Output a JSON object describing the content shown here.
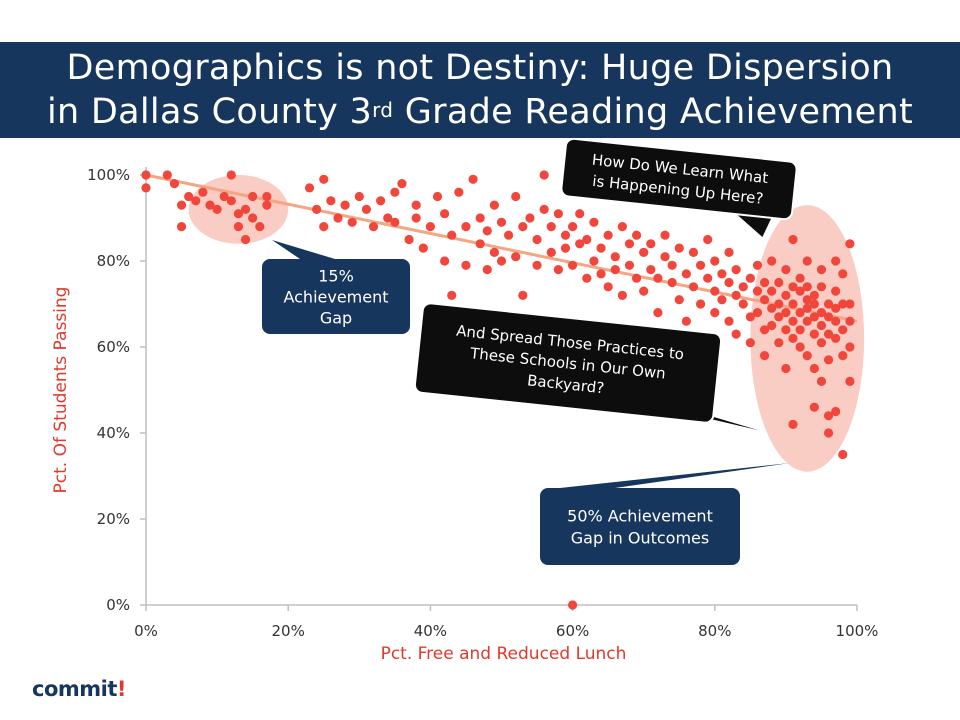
{
  "header": {
    "title_line1": "Demographics is not Destiny:  Huge Dispersion",
    "title_line2_pre": "in Dallas County 3",
    "title_line2_sup": "rd",
    "title_line2_post": " Grade Reading Achievement"
  },
  "logo": {
    "text": "commit",
    "accent": "!"
  },
  "colors": {
    "header_bg": "#17365d",
    "point": "#f0463c",
    "trend": "#f4a582",
    "highlight": "#f8c4b8",
    "callout_navy": "#17365d",
    "callout_black": "#0d0d0d",
    "axis_label": "#e2382b"
  },
  "chart_data": {
    "type": "scatter",
    "xlabel": "Pct. Free and Reduced Lunch",
    "ylabel": "Pct. Of Students Passing",
    "xlim": [
      0,
      100
    ],
    "ylim": [
      0,
      100
    ],
    "x_ticks": [
      "0%",
      "20%",
      "40%",
      "60%",
      "80%",
      "100%"
    ],
    "y_ticks": [
      "0%",
      "20%",
      "40%",
      "60%",
      "80%",
      "100%"
    ],
    "grid": false,
    "trendline": {
      "x": [
        0,
        100
      ],
      "y": [
        100,
        66
      ]
    },
    "highlights": [
      {
        "cx": 13,
        "cy": 92,
        "rx": 7,
        "ry": 8
      },
      {
        "cx": 93,
        "cy": 62,
        "rx": 8,
        "ry": 31
      }
    ],
    "callouts": [
      {
        "text_lines": [
          "15%",
          "Achievement",
          "Gap"
        ],
        "style": "navy"
      },
      {
        "text_lines": [
          "50% Achievement",
          "Gap in Outcomes"
        ],
        "style": "navy"
      },
      {
        "text_lines": [
          "How Do We Learn What",
          "is Happening Up Here?"
        ],
        "style": "black"
      },
      {
        "text_lines": [
          "And Spread Those Practices to",
          "These Schools in Our Own",
          "Backyard?"
        ],
        "style": "black"
      }
    ],
    "points": [
      [
        0,
        100
      ],
      [
        0,
        97
      ],
      [
        3,
        100
      ],
      [
        4,
        98
      ],
      [
        5,
        93
      ],
      [
        5,
        88
      ],
      [
        6,
        95
      ],
      [
        7,
        94
      ],
      [
        8,
        96
      ],
      [
        9,
        93
      ],
      [
        10,
        92
      ],
      [
        11,
        95
      ],
      [
        12,
        100
      ],
      [
        12,
        94
      ],
      [
        13,
        91
      ],
      [
        13,
        88
      ],
      [
        14,
        92
      ],
      [
        14,
        85
      ],
      [
        15,
        95
      ],
      [
        15,
        90
      ],
      [
        16,
        88
      ],
      [
        17,
        93
      ],
      [
        17,
        95
      ],
      [
        23,
        97
      ],
      [
        24,
        92
      ],
      [
        25,
        99
      ],
      [
        25,
        88
      ],
      [
        26,
        94
      ],
      [
        27,
        90
      ],
      [
        28,
        93
      ],
      [
        29,
        89
      ],
      [
        30,
        95
      ],
      [
        31,
        92
      ],
      [
        32,
        88
      ],
      [
        33,
        94
      ],
      [
        34,
        90
      ],
      [
        35,
        89
      ],
      [
        35,
        96
      ],
      [
        36,
        98
      ],
      [
        37,
        85
      ],
      [
        38,
        90
      ],
      [
        38,
        93
      ],
      [
        39,
        83
      ],
      [
        40,
        88
      ],
      [
        41,
        95
      ],
      [
        42,
        91
      ],
      [
        42,
        80
      ],
      [
        43,
        86
      ],
      [
        43,
        72
      ],
      [
        44,
        96
      ],
      [
        45,
        88
      ],
      [
        45,
        79
      ],
      [
        46,
        99
      ],
      [
        47,
        90
      ],
      [
        47,
        84
      ],
      [
        48,
        78
      ],
      [
        48,
        87
      ],
      [
        49,
        82
      ],
      [
        49,
        93
      ],
      [
        50,
        80
      ],
      [
        50,
        89
      ],
      [
        51,
        86
      ],
      [
        52,
        95
      ],
      [
        52,
        81
      ],
      [
        53,
        88
      ],
      [
        53,
        72
      ],
      [
        54,
        90
      ],
      [
        55,
        85
      ],
      [
        55,
        79
      ],
      [
        56,
        92
      ],
      [
        56,
        100
      ],
      [
        57,
        82
      ],
      [
        57,
        88
      ],
      [
        58,
        78
      ],
      [
        58,
        91
      ],
      [
        59,
        86
      ],
      [
        59,
        83
      ],
      [
        60,
        88
      ],
      [
        60,
        79
      ],
      [
        61,
        84
      ],
      [
        61,
        91
      ],
      [
        62,
        76
      ],
      [
        62,
        85
      ],
      [
        63,
        80
      ],
      [
        63,
        89
      ],
      [
        64,
        77
      ],
      [
        64,
        83
      ],
      [
        65,
        74
      ],
      [
        65,
        86
      ],
      [
        66,
        81
      ],
      [
        66,
        78
      ],
      [
        67,
        88
      ],
      [
        67,
        72
      ],
      [
        68,
        84
      ],
      [
        68,
        79
      ],
      [
        69,
        76
      ],
      [
        69,
        86
      ],
      [
        70,
        82
      ],
      [
        70,
        73
      ],
      [
        71,
        78
      ],
      [
        71,
        84
      ],
      [
        72,
        76
      ],
      [
        72,
        68
      ],
      [
        73,
        81
      ],
      [
        73,
        86
      ],
      [
        74,
        75
      ],
      [
        74,
        79
      ],
      [
        75,
        71
      ],
      [
        75,
        83
      ],
      [
        76,
        77
      ],
      [
        76,
        66
      ],
      [
        77,
        82
      ],
      [
        77,
        74
      ],
      [
        78,
        79
      ],
      [
        78,
        70
      ],
      [
        79,
        76
      ],
      [
        79,
        85
      ],
      [
        80,
        73
      ],
      [
        80,
        68
      ],
      [
        80,
        80
      ],
      [
        81,
        77
      ],
      [
        81,
        71
      ],
      [
        82,
        75
      ],
      [
        82,
        66
      ],
      [
        82,
        82
      ],
      [
        83,
        72
      ],
      [
        83,
        63
      ],
      [
        83,
        78
      ],
      [
        84,
        70
      ],
      [
        84,
        74
      ],
      [
        85,
        67
      ],
      [
        85,
        76
      ],
      [
        85,
        61
      ],
      [
        86,
        73
      ],
      [
        86,
        68
      ],
      [
        86,
        79
      ],
      [
        87,
        64
      ],
      [
        87,
        71
      ],
      [
        87,
        75
      ],
      [
        87,
        58
      ],
      [
        88,
        69
      ],
      [
        88,
        73
      ],
      [
        88,
        65
      ],
      [
        88,
        80
      ],
      [
        89,
        61
      ],
      [
        89,
        70
      ],
      [
        89,
        75
      ],
      [
        89,
        67
      ],
      [
        90,
        72
      ],
      [
        90,
        64
      ],
      [
        90,
        68
      ],
      [
        90,
        78
      ],
      [
        90,
        55
      ],
      [
        91,
        70
      ],
      [
        91,
        62
      ],
      [
        91,
        74
      ],
      [
        91,
        66
      ],
      [
        91,
        42
      ],
      [
        91,
        85
      ],
      [
        92,
        68
      ],
      [
        92,
        73
      ],
      [
        92,
        60
      ],
      [
        92,
        76
      ],
      [
        92,
        64
      ],
      [
        93,
        71
      ],
      [
        93,
        66
      ],
      [
        93,
        58
      ],
      [
        93,
        74
      ],
      [
        93,
        69
      ],
      [
        93,
        80
      ],
      [
        94,
        63
      ],
      [
        94,
        70
      ],
      [
        94,
        67
      ],
      [
        94,
        55
      ],
      [
        94,
        72
      ],
      [
        94,
        46
      ],
      [
        95,
        68
      ],
      [
        95,
        61
      ],
      [
        95,
        74
      ],
      [
        95,
        65
      ],
      [
        95,
        78
      ],
      [
        95,
        52
      ],
      [
        96,
        70
      ],
      [
        96,
        63
      ],
      [
        96,
        67
      ],
      [
        96,
        57
      ],
      [
        96,
        44
      ],
      [
        96,
        40
      ],
      [
        97,
        69
      ],
      [
        97,
        62
      ],
      [
        97,
        66
      ],
      [
        97,
        73
      ],
      [
        97,
        45
      ],
      [
        97,
        80
      ],
      [
        98,
        64
      ],
      [
        98,
        70
      ],
      [
        98,
        58
      ],
      [
        98,
        35
      ],
      [
        98,
        77
      ],
      [
        99,
        66
      ],
      [
        99,
        60
      ],
      [
        99,
        52
      ],
      [
        99,
        84
      ],
      [
        99,
        70
      ],
      [
        60,
        0
      ]
    ]
  }
}
